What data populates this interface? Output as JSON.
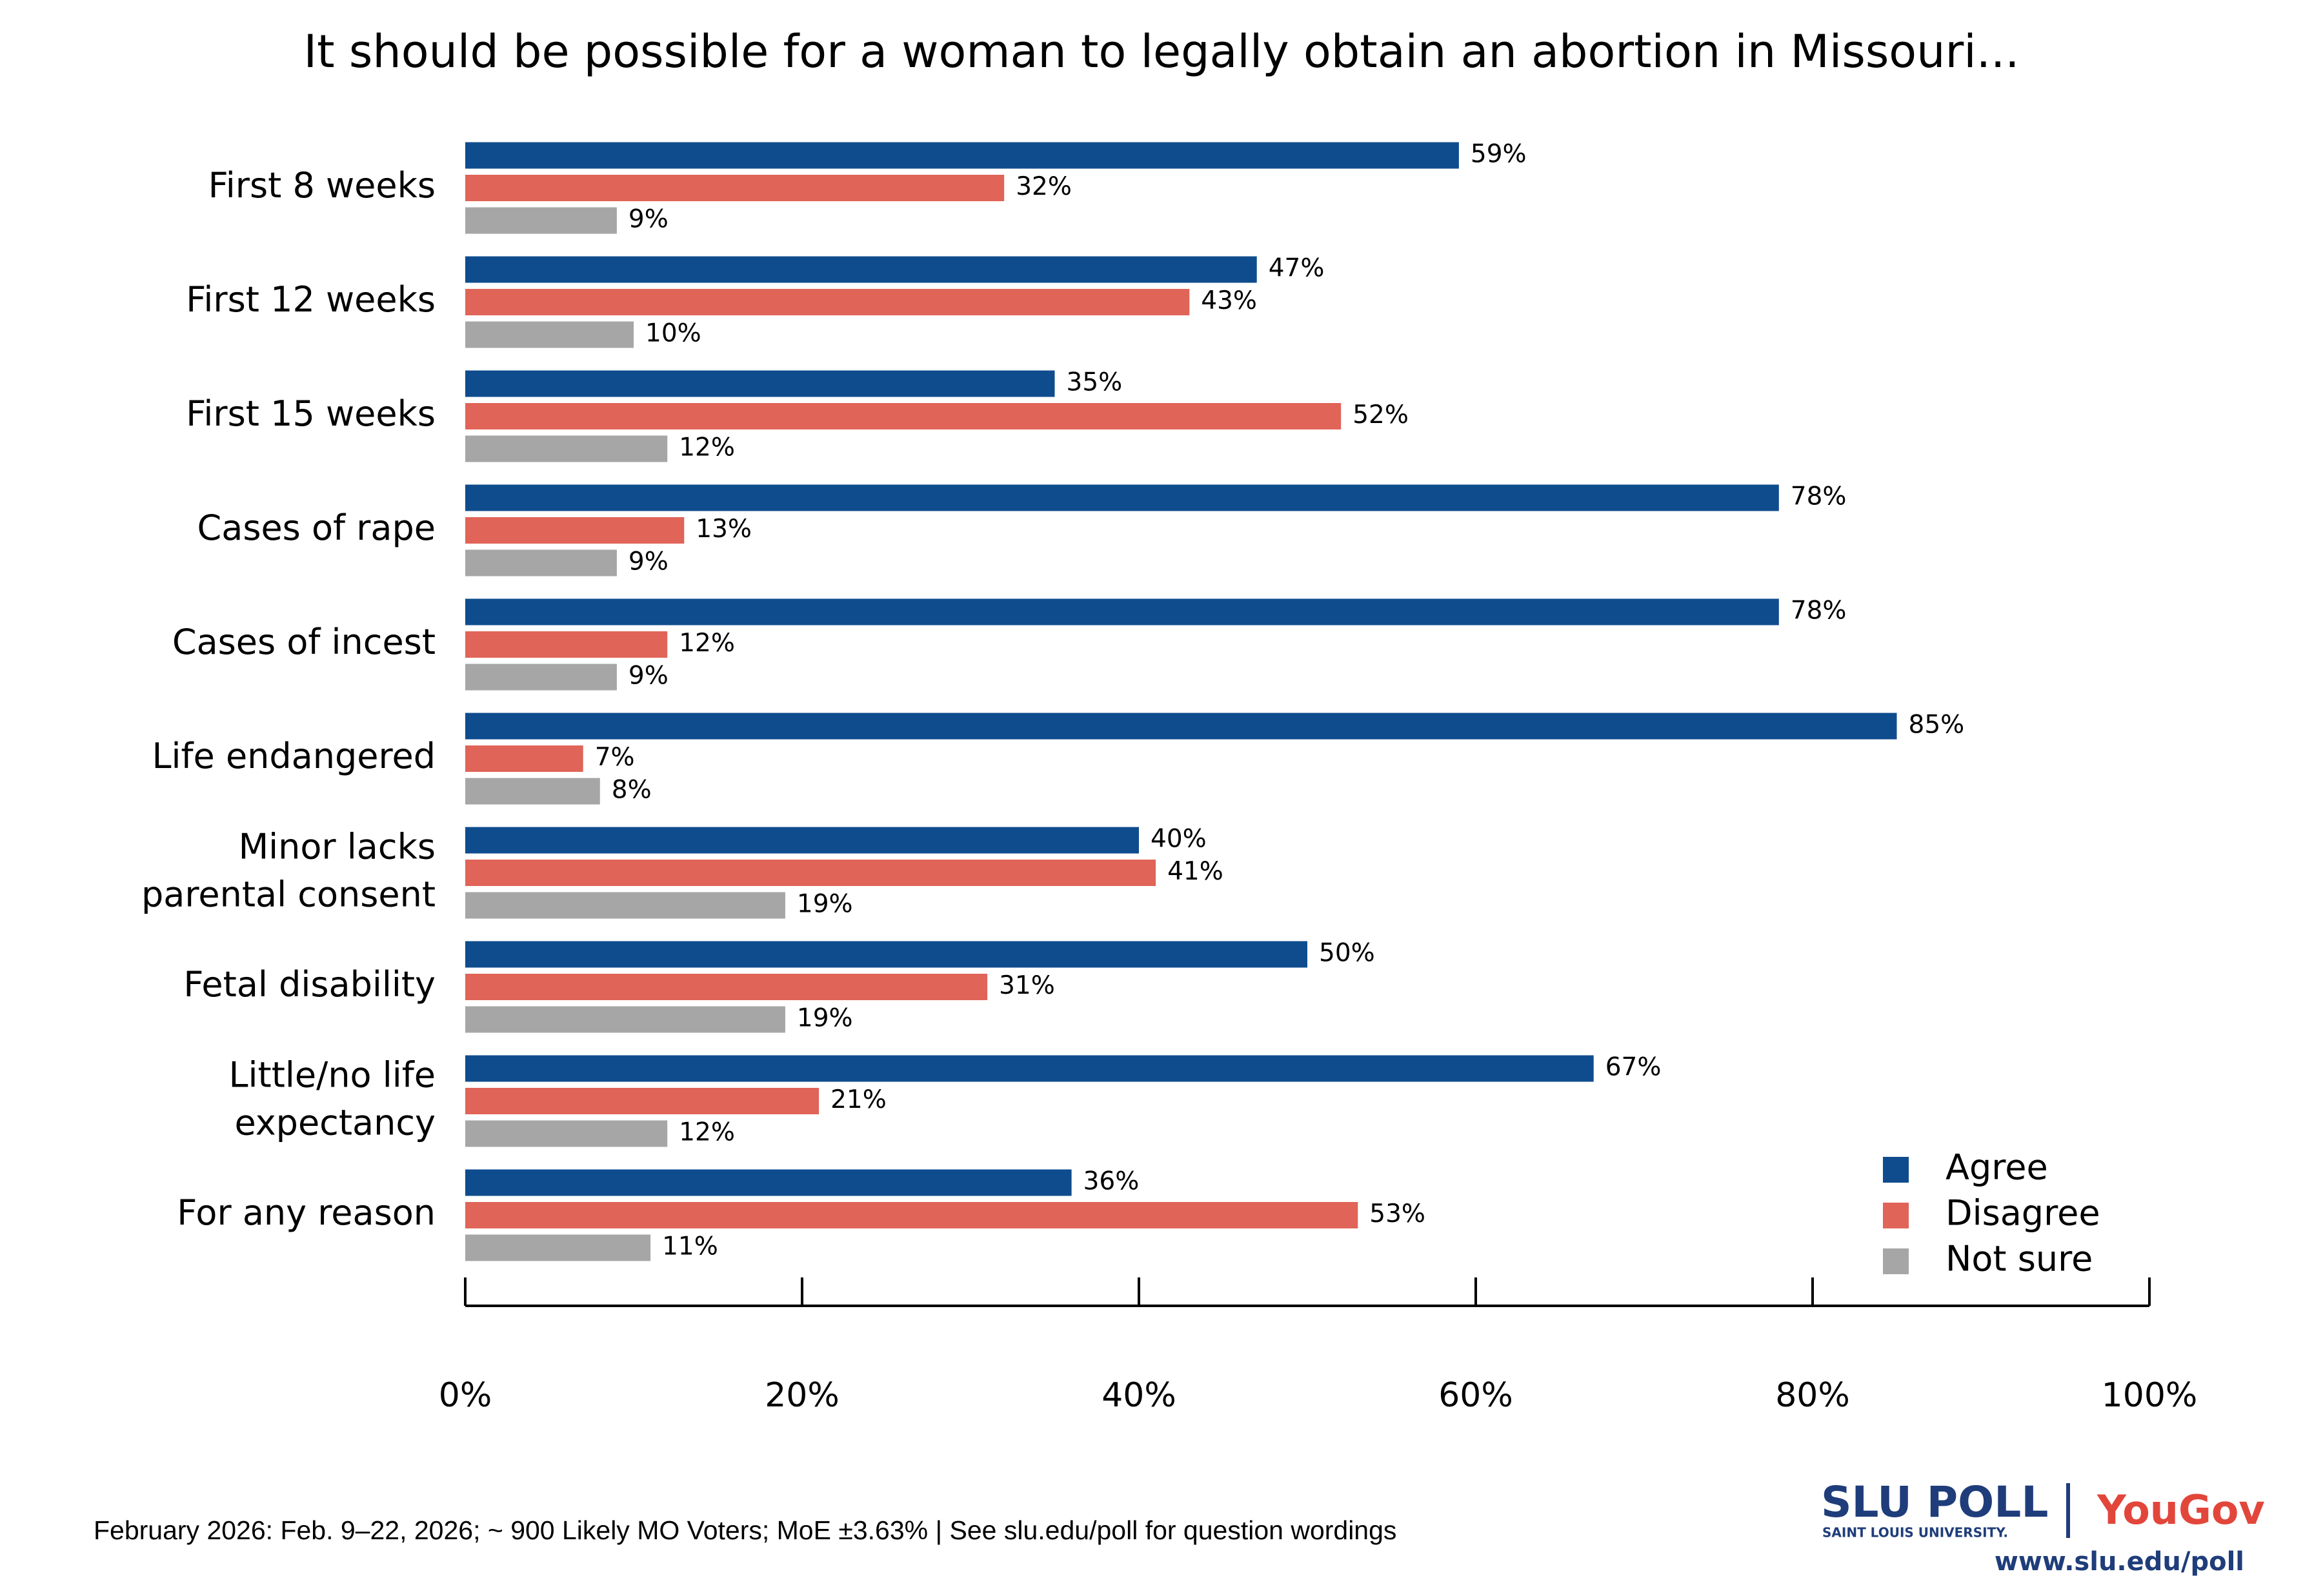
{
  "chart_data": {
    "type": "bar",
    "orientation": "horizontal",
    "title": "It should be possible for a woman to legally obtain an abortion in Missouri...",
    "categories": [
      "First 8 weeks",
      "First 12 weeks",
      "First 15 weeks",
      "Cases of rape",
      "Cases of incest",
      "Life endangered",
      "Minor lacks\nparental consent",
      "Fetal disability",
      "Little/no life\nexpectancy",
      "For any reason"
    ],
    "series": [
      {
        "name": "Agree",
        "color": "#0f4c8e",
        "values": [
          59,
          47,
          35,
          78,
          78,
          85,
          40,
          50,
          67,
          36
        ],
        "value_labels": [
          "59%",
          "47%",
          "35%",
          "78%",
          "78%",
          "85%",
          "40%",
          "50%",
          "67%",
          "36%"
        ]
      },
      {
        "name": "Disagree",
        "color": "#e06458",
        "values": [
          32,
          43,
          52,
          13,
          12,
          7,
          41,
          31,
          21,
          53
        ],
        "value_labels": [
          "32%",
          "43%",
          "52%",
          "13%",
          "12%",
          "7%",
          "41%",
          "31%",
          "21%",
          "53%"
        ]
      },
      {
        "name": "Not sure",
        "color": "#a6a6a6",
        "values": [
          9,
          10,
          12,
          9,
          9,
          8,
          19,
          19,
          12,
          11
        ],
        "value_labels": [
          "9%",
          "10%",
          "12%",
          "9%",
          "9%",
          "8%",
          "19%",
          "19%",
          "12%",
          "11%"
        ]
      }
    ],
    "xlim": [
      0,
      100
    ],
    "xticks": [
      {
        "value": 0,
        "label": "0%"
      },
      {
        "value": 20,
        "label": "20%"
      },
      {
        "value": 40,
        "label": "40%"
      },
      {
        "value": 60,
        "label": "60%"
      },
      {
        "value": 80,
        "label": "80%"
      },
      {
        "value": 100,
        "label": "100%"
      }
    ],
    "grid": false,
    "legend": "bottom-right",
    "footnote": "February 2026: Feb. 9–22, 2026; ~ 900 Likely MO Voters; MoE ±3.63%  |  See slu.edu/poll for question wordings",
    "branding": {
      "poll": "SLU POLL",
      "university": "SAINT LOUIS UNIVERSITY.",
      "partner": "YouGov",
      "url": "www.slu.edu/poll"
    }
  }
}
